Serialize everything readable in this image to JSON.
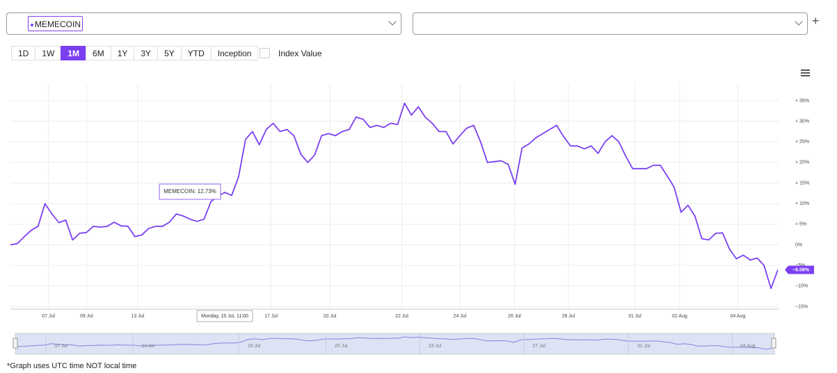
{
  "controls": {
    "asset": "MEMECOIN",
    "ranges": [
      "1D",
      "1W",
      "1M",
      "6M",
      "1Y",
      "3Y",
      "5Y",
      "YTD",
      "Inception"
    ],
    "selected_index": 2,
    "index_value": "Index Value"
  },
  "chart_data": {
    "type": "line",
    "series": [
      {
        "name": "MEMECOIN",
        "color": "#7b3ff2",
        "values": [
          0,
          0.3,
          2,
          3.5,
          4.5,
          10,
          7.5,
          5.4,
          6,
          1.2,
          2.8,
          3,
          4.5,
          4.3,
          4.5,
          5.5,
          4.6,
          4.5,
          2,
          2.4,
          4,
          4.5,
          4.5,
          5.5,
          7.5,
          7,
          6.2,
          5.7,
          6.2,
          10.5,
          11.8,
          12.73,
          12,
          16.5,
          25.6,
          27.5,
          24.3,
          28,
          29.5,
          27.5,
          28,
          26.5,
          22,
          20,
          21.8,
          26.5,
          27,
          26.5,
          27.5,
          28,
          31,
          30.5,
          28.5,
          29,
          28.5,
          29.5,
          29.2,
          34.4,
          31.5,
          33.5,
          31,
          29.5,
          27.5,
          27.5,
          24.5,
          26.5,
          28.3,
          29,
          25,
          20,
          20.2,
          20.4,
          19.5,
          14.7,
          23.5,
          24.5,
          26,
          27,
          28,
          29,
          26.3,
          24,
          24,
          23.3,
          24,
          22.2,
          25,
          26.5,
          25,
          21.5,
          18.5,
          18.5,
          18.5,
          19.3,
          19.3,
          16.7,
          14,
          7.9,
          9.6,
          7,
          1.5,
          1.2,
          2.8,
          2.9,
          -1,
          -3.4,
          -2.5,
          -3.7,
          -3.2,
          -5,
          -10.6,
          -6.08
        ]
      }
    ],
    "xlim": [
      0,
      111
    ],
    "xticks": [
      {
        "value": 5.5,
        "label": "07 Jul"
      },
      {
        "value": 11,
        "label": "09 Jul"
      },
      {
        "value": 18.4,
        "label": "13 Jul"
      },
      {
        "value": 37.7,
        "label": "17 Jul"
      },
      {
        "value": 46.2,
        "label": "20 Jul"
      },
      {
        "value": 56.6,
        "label": "22 Jul"
      },
      {
        "value": 65,
        "label": "24 Jul"
      },
      {
        "value": 72.9,
        "label": "26 Jul"
      },
      {
        "value": 80.7,
        "label": "28 Jul"
      },
      {
        "value": 90.3,
        "label": "31 Jul"
      },
      {
        "value": 96.8,
        "label": "02 Aug"
      },
      {
        "value": 105.2,
        "label": "04 Aug"
      }
    ],
    "ylim": [
      -15.6,
      39.2
    ],
    "yticks": [
      {
        "value": 35,
        "label": "+ 35%"
      },
      {
        "value": 30,
        "label": "+ 30%"
      },
      {
        "value": 25,
        "label": "+ 25%"
      },
      {
        "value": 20,
        "label": "+ 20%"
      },
      {
        "value": 15,
        "label": "+ 15%"
      },
      {
        "value": 10,
        "label": "+ 10%"
      },
      {
        "value": 5,
        "label": "+ 5%"
      },
      {
        "value": 0,
        "label": "0%"
      },
      {
        "value": -5,
        "label": "−5%"
      },
      {
        "value": -10,
        "label": "−10%"
      },
      {
        "value": -15,
        "label": "−15%"
      }
    ],
    "grid": true,
    "end_label": "−6.08%",
    "tooltip": {
      "label": "MEMECOIN: 12.73%",
      "date": "Monday, 15 Jul, 11:00"
    },
    "navigator_ticks": [
      {
        "value": 6.4,
        "label": "07 Jul"
      },
      {
        "value": 19.2,
        "label": "13 Jul"
      },
      {
        "value": 34.8,
        "label": "16 Jul"
      },
      {
        "value": 47.6,
        "label": "20 Jul"
      },
      {
        "value": 61.4,
        "label": "23 Jul"
      },
      {
        "value": 76.7,
        "label": "27 Jul"
      },
      {
        "value": 92.1,
        "label": "31 Jul"
      },
      {
        "value": 107.4,
        "label": "04 Aug"
      }
    ]
  },
  "footnote": "*Graph uses UTC time NOT local time"
}
